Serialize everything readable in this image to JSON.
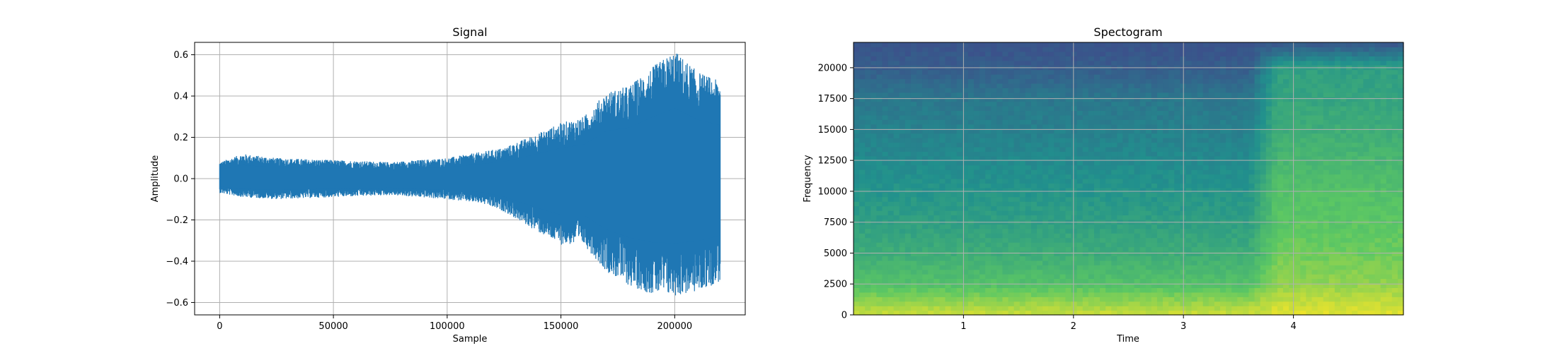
{
  "chart_data": [
    {
      "type": "line",
      "title": "Signal",
      "xlabel": "Sample",
      "ylabel": "Amplitude",
      "xlim": [
        -11000,
        231000
      ],
      "ylim": [
        -0.66,
        0.66
      ],
      "xticks": [
        0,
        50000,
        100000,
        150000,
        200000
      ],
      "xtick_labels": [
        "0",
        "50000",
        "100000",
        "150000",
        "200000"
      ],
      "yticks": [
        -0.6,
        -0.4,
        -0.2,
        0.0,
        0.2,
        0.4,
        0.6
      ],
      "ytick_labels": [
        "−0.6",
        "−0.4",
        "−0.2",
        "0.0",
        "0.2",
        "0.4",
        "0.6"
      ],
      "grid": true,
      "color": "#1f77b4",
      "envelope": {
        "x": [
          0,
          10000,
          25000,
          50000,
          75000,
          100000,
          115000,
          125000,
          140000,
          150000,
          160000,
          170000,
          180000,
          190000,
          200000,
          210000,
          220000
        ],
        "upper": [
          0.08,
          0.12,
          0.1,
          0.09,
          0.08,
          0.1,
          0.13,
          0.15,
          0.22,
          0.27,
          0.3,
          0.42,
          0.45,
          0.54,
          0.62,
          0.52,
          0.47
        ],
        "lower": [
          -0.07,
          -0.09,
          -0.1,
          -0.09,
          -0.08,
          -0.1,
          -0.12,
          -0.16,
          -0.26,
          -0.32,
          -0.32,
          -0.45,
          -0.52,
          -0.56,
          -0.57,
          -0.55,
          -0.5
        ]
      }
    },
    {
      "type": "heatmap",
      "title": "Spectogram",
      "xlabel": "Time",
      "ylabel": "Frequency",
      "xlim": [
        0,
        5.0
      ],
      "ylim": [
        0,
        22050
      ],
      "xticks": [
        1,
        2,
        3,
        4
      ],
      "xtick_labels": [
        "1",
        "2",
        "3",
        "4"
      ],
      "yticks": [
        0,
        2500,
        5000,
        7500,
        10000,
        12500,
        15000,
        17500,
        20000
      ],
      "ytick_labels": [
        "0",
        "2500",
        "5000",
        "7500",
        "10000",
        "12500",
        "15000",
        "17500",
        "20000"
      ],
      "grid": true,
      "colormap": [
        "#3b528b",
        "#21908d",
        "#5dc863",
        "#fde725"
      ],
      "intensity": {
        "time": [
          0,
          3.6,
          3.85,
          5.0
        ],
        "freq": [
          0,
          2500,
          5000,
          7500,
          10000,
          12500,
          15000,
          17500,
          20000,
          22050
        ],
        "before": [
          0.9,
          0.62,
          0.5,
          0.42,
          0.36,
          0.3,
          0.25,
          0.2,
          0.06,
          0.0
        ],
        "after": [
          0.95,
          0.78,
          0.7,
          0.65,
          0.62,
          0.56,
          0.5,
          0.45,
          0.42,
          0.02
        ]
      }
    }
  ]
}
